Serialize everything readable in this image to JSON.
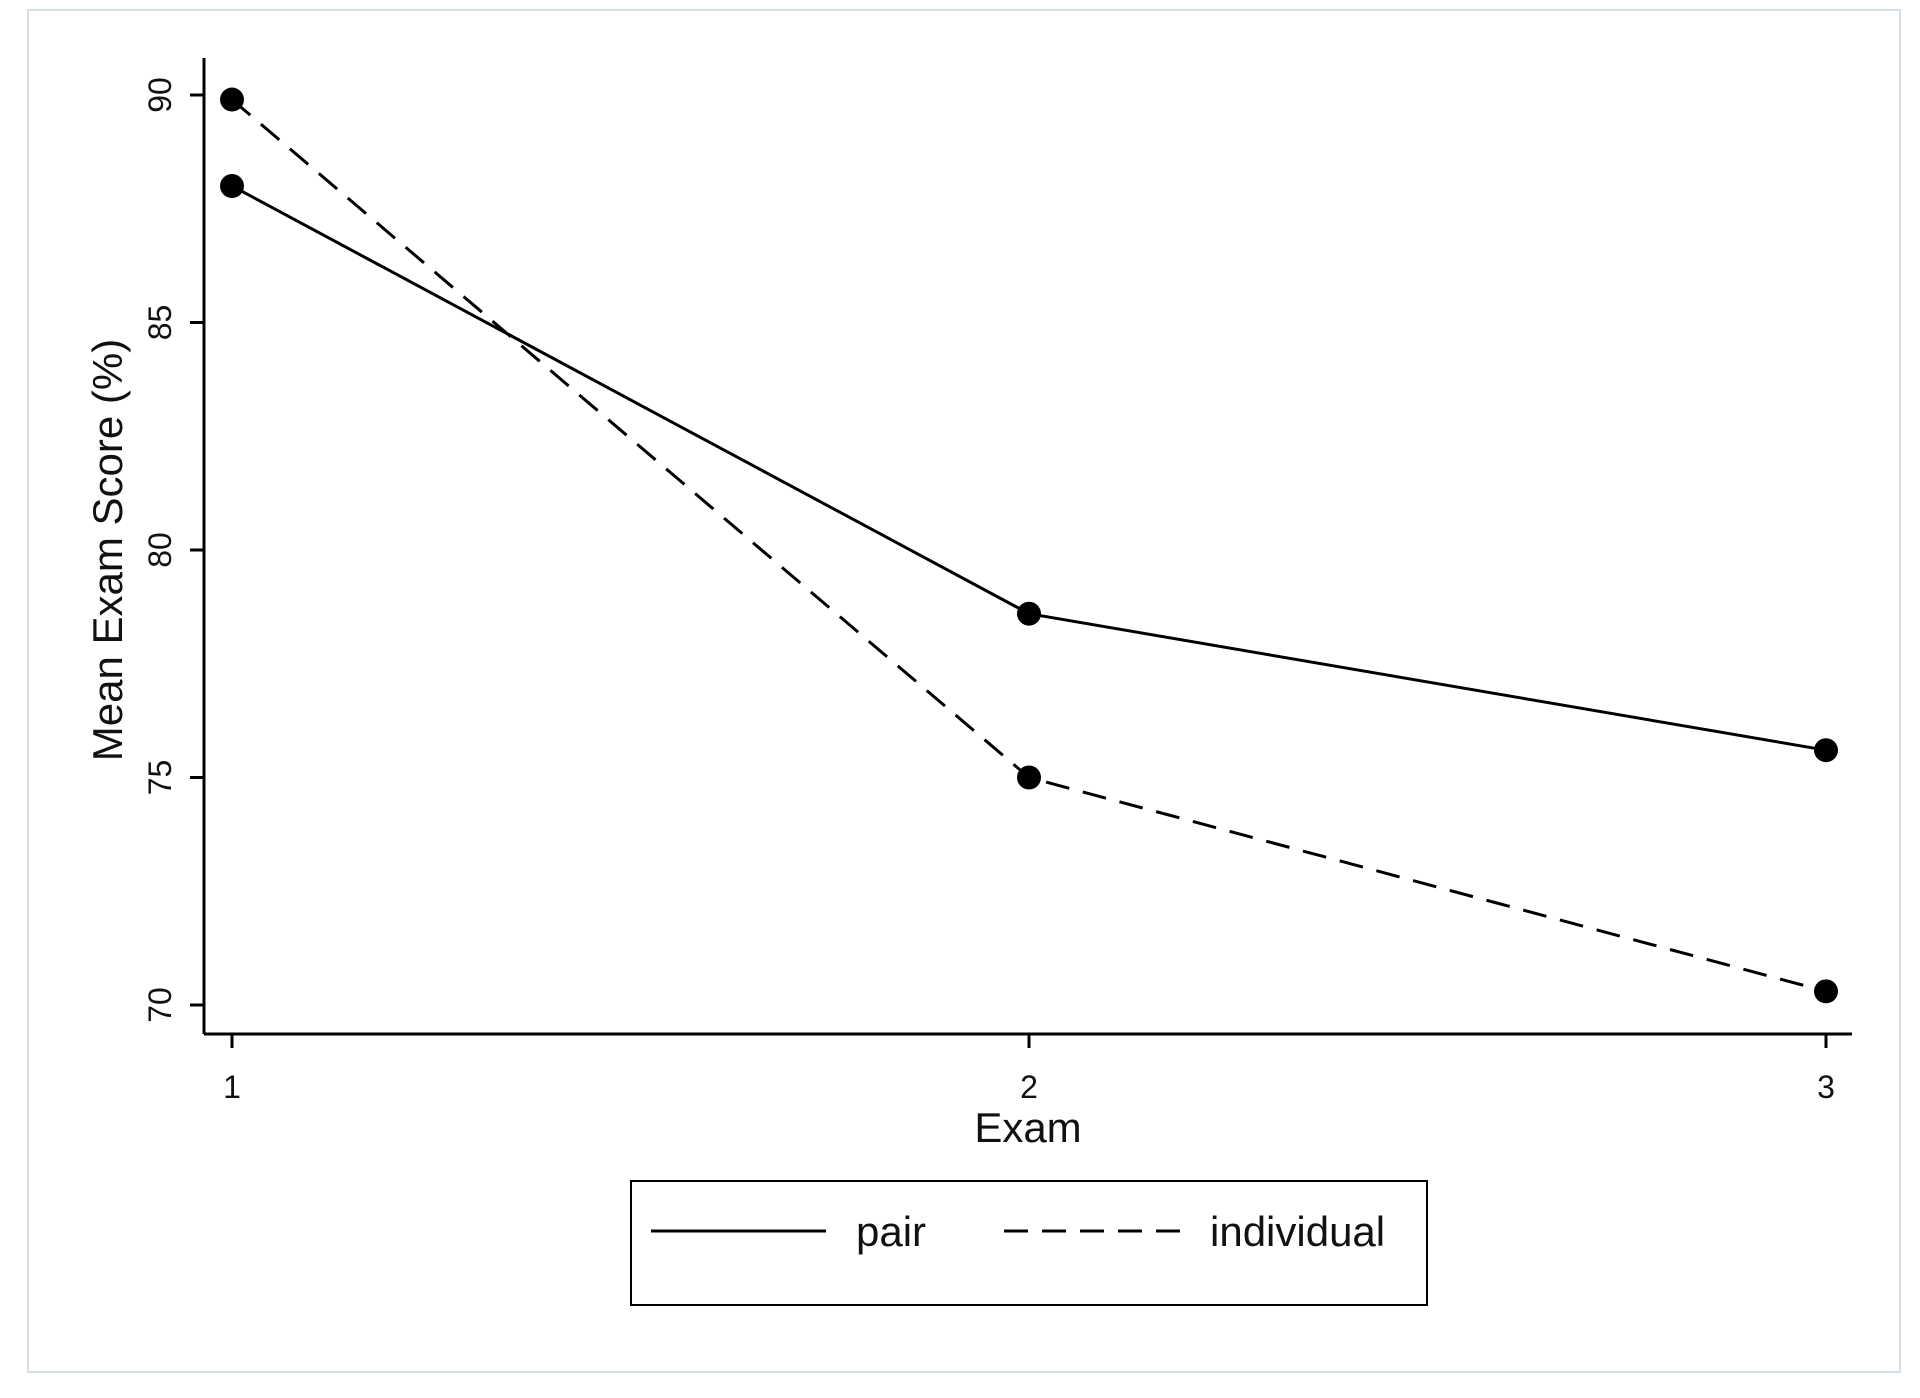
{
  "chart_data": {
    "type": "line",
    "title": "",
    "xlabel": "Exam",
    "ylabel": "Mean Exam Score (%)",
    "x": [
      1,
      2,
      3
    ],
    "xticks": [
      "1",
      "2",
      "3"
    ],
    "xlim": [
      1,
      3
    ],
    "yticks": [
      "70",
      "75",
      "80",
      "85",
      "90"
    ],
    "ylim": [
      70,
      90
    ],
    "grid": false,
    "legend_position": "bottom",
    "series": [
      {
        "name": "pair",
        "line_style": "solid",
        "values": [
          88.0,
          78.6,
          75.6
        ]
      },
      {
        "name": "individual",
        "line_style": "dashed",
        "values": [
          89.9,
          75.0,
          70.3
        ]
      }
    ],
    "colors": {
      "line": "#000000",
      "marker": "#000000",
      "frame": "#d6e1e6"
    }
  }
}
